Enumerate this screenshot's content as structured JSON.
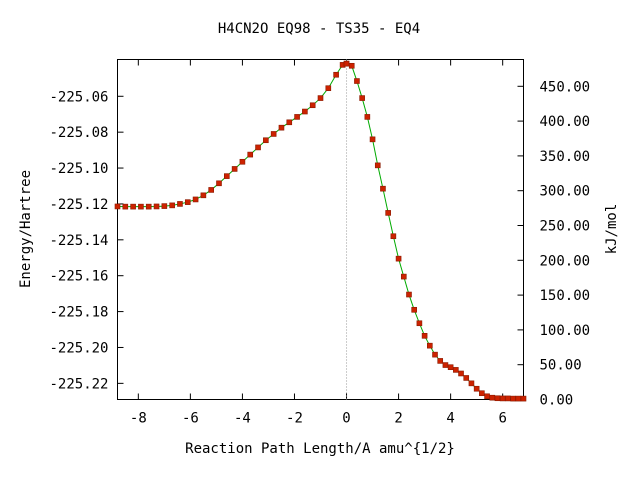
{
  "chart_data": {
    "type": "line",
    "title": "H4CN2O   EQ98 - TS35 - EQ4",
    "xlabel": "Reaction Path Length/A amu^{1/2}",
    "ylabel": "Energy/Hartree",
    "y2label": "kJ/mol",
    "xlim": [
      -8.8,
      6.8
    ],
    "ylim": [
      -225.229,
      -225.0395
    ],
    "y2lim": [
      0,
      488.5
    ],
    "grid": false,
    "x_ticks": [
      -8,
      -6,
      -4,
      -2,
      0,
      2,
      4,
      6
    ],
    "x_tick_labels": [
      "-8",
      "-6",
      "-4",
      "-2",
      "0",
      "2",
      "4",
      "6"
    ],
    "y_ticks": [
      -225.22,
      -225.2,
      -225.18,
      -225.16,
      -225.14,
      -225.12,
      -225.1,
      -225.08,
      -225.06
    ],
    "y_tick_labels": [
      "-225.22",
      "-225.20",
      "-225.18",
      "-225.16",
      "-225.14",
      "-225.12",
      "-225.10",
      "-225.08",
      "-225.06"
    ],
    "y2_ticks": [
      0,
      50,
      100,
      150,
      200,
      250,
      300,
      350,
      400,
      450
    ],
    "y2_tick_labels": [
      "0.00",
      "50.00",
      "100.00",
      "150.00",
      "200.00",
      "250.00",
      "300.00",
      "350.00",
      "400.00",
      "450.00"
    ],
    "ts_marker_x": 0,
    "colors": {
      "left_branch": "#cc2200",
      "right_branch": "#cc2200",
      "line": "#00aa00",
      "marker_line": "#999999"
    },
    "series": [
      {
        "points": [
          [
            -8.8,
            -225.1214
          ],
          [
            -8.5,
            -225.1215
          ],
          [
            -8.2,
            -225.1215
          ],
          [
            -7.9,
            -225.1215
          ],
          [
            -7.6,
            -225.1215
          ],
          [
            -7.3,
            -225.1214
          ],
          [
            -7.0,
            -225.1212
          ],
          [
            -6.7,
            -225.1208
          ],
          [
            -6.4,
            -225.12
          ],
          [
            -6.1,
            -225.119
          ],
          [
            -5.8,
            -225.1175
          ],
          [
            -5.5,
            -225.1152
          ],
          [
            -5.2,
            -225.1122
          ],
          [
            -4.9,
            -225.1085
          ],
          [
            -4.6,
            -225.1045
          ],
          [
            -4.3,
            -225.1005
          ],
          [
            -4.0,
            -225.0965
          ],
          [
            -3.7,
            -225.0925
          ],
          [
            -3.4,
            -225.0885
          ],
          [
            -3.1,
            -225.0845
          ],
          [
            -2.8,
            -225.081
          ],
          [
            -2.5,
            -225.0775
          ],
          [
            -2.2,
            -225.0745
          ],
          [
            -1.9,
            -225.0715
          ],
          [
            -1.6,
            -225.0685
          ],
          [
            -1.3,
            -225.065
          ],
          [
            -1.0,
            -225.061
          ],
          [
            -0.7,
            -225.0555
          ],
          [
            -0.4,
            -225.048
          ],
          [
            -0.15,
            -225.0425
          ],
          [
            0.0,
            -225.0418
          ]
        ]
      },
      {
        "points": [
          [
            0.0,
            -225.0418
          ],
          [
            0.2,
            -225.043
          ],
          [
            0.4,
            -225.0515
          ],
          [
            0.6,
            -225.061
          ],
          [
            0.8,
            -225.0715
          ],
          [
            1.0,
            -225.084
          ],
          [
            1.2,
            -225.0985
          ],
          [
            1.4,
            -225.1115
          ],
          [
            1.6,
            -225.125
          ],
          [
            1.8,
            -225.138
          ],
          [
            2.0,
            -225.1505
          ],
          [
            2.2,
            -225.1605
          ],
          [
            2.4,
            -225.1705
          ],
          [
            2.6,
            -225.179
          ],
          [
            2.8,
            -225.1865
          ],
          [
            3.0,
            -225.1935
          ],
          [
            3.2,
            -225.199
          ],
          [
            3.4,
            -225.204
          ],
          [
            3.6,
            -225.2075
          ],
          [
            3.8,
            -225.2098
          ],
          [
            4.0,
            -225.211
          ],
          [
            4.2,
            -225.2125
          ],
          [
            4.4,
            -225.2145
          ],
          [
            4.6,
            -225.217
          ],
          [
            4.8,
            -225.22
          ],
          [
            5.0,
            -225.223
          ],
          [
            5.2,
            -225.2255
          ],
          [
            5.4,
            -225.2272
          ],
          [
            5.6,
            -225.228
          ],
          [
            5.8,
            -225.2283
          ],
          [
            6.0,
            -225.2284
          ],
          [
            6.2,
            -225.2284
          ],
          [
            6.4,
            -225.2285
          ],
          [
            6.6,
            -225.2285
          ],
          [
            6.8,
            -225.2285
          ]
        ]
      }
    ]
  }
}
